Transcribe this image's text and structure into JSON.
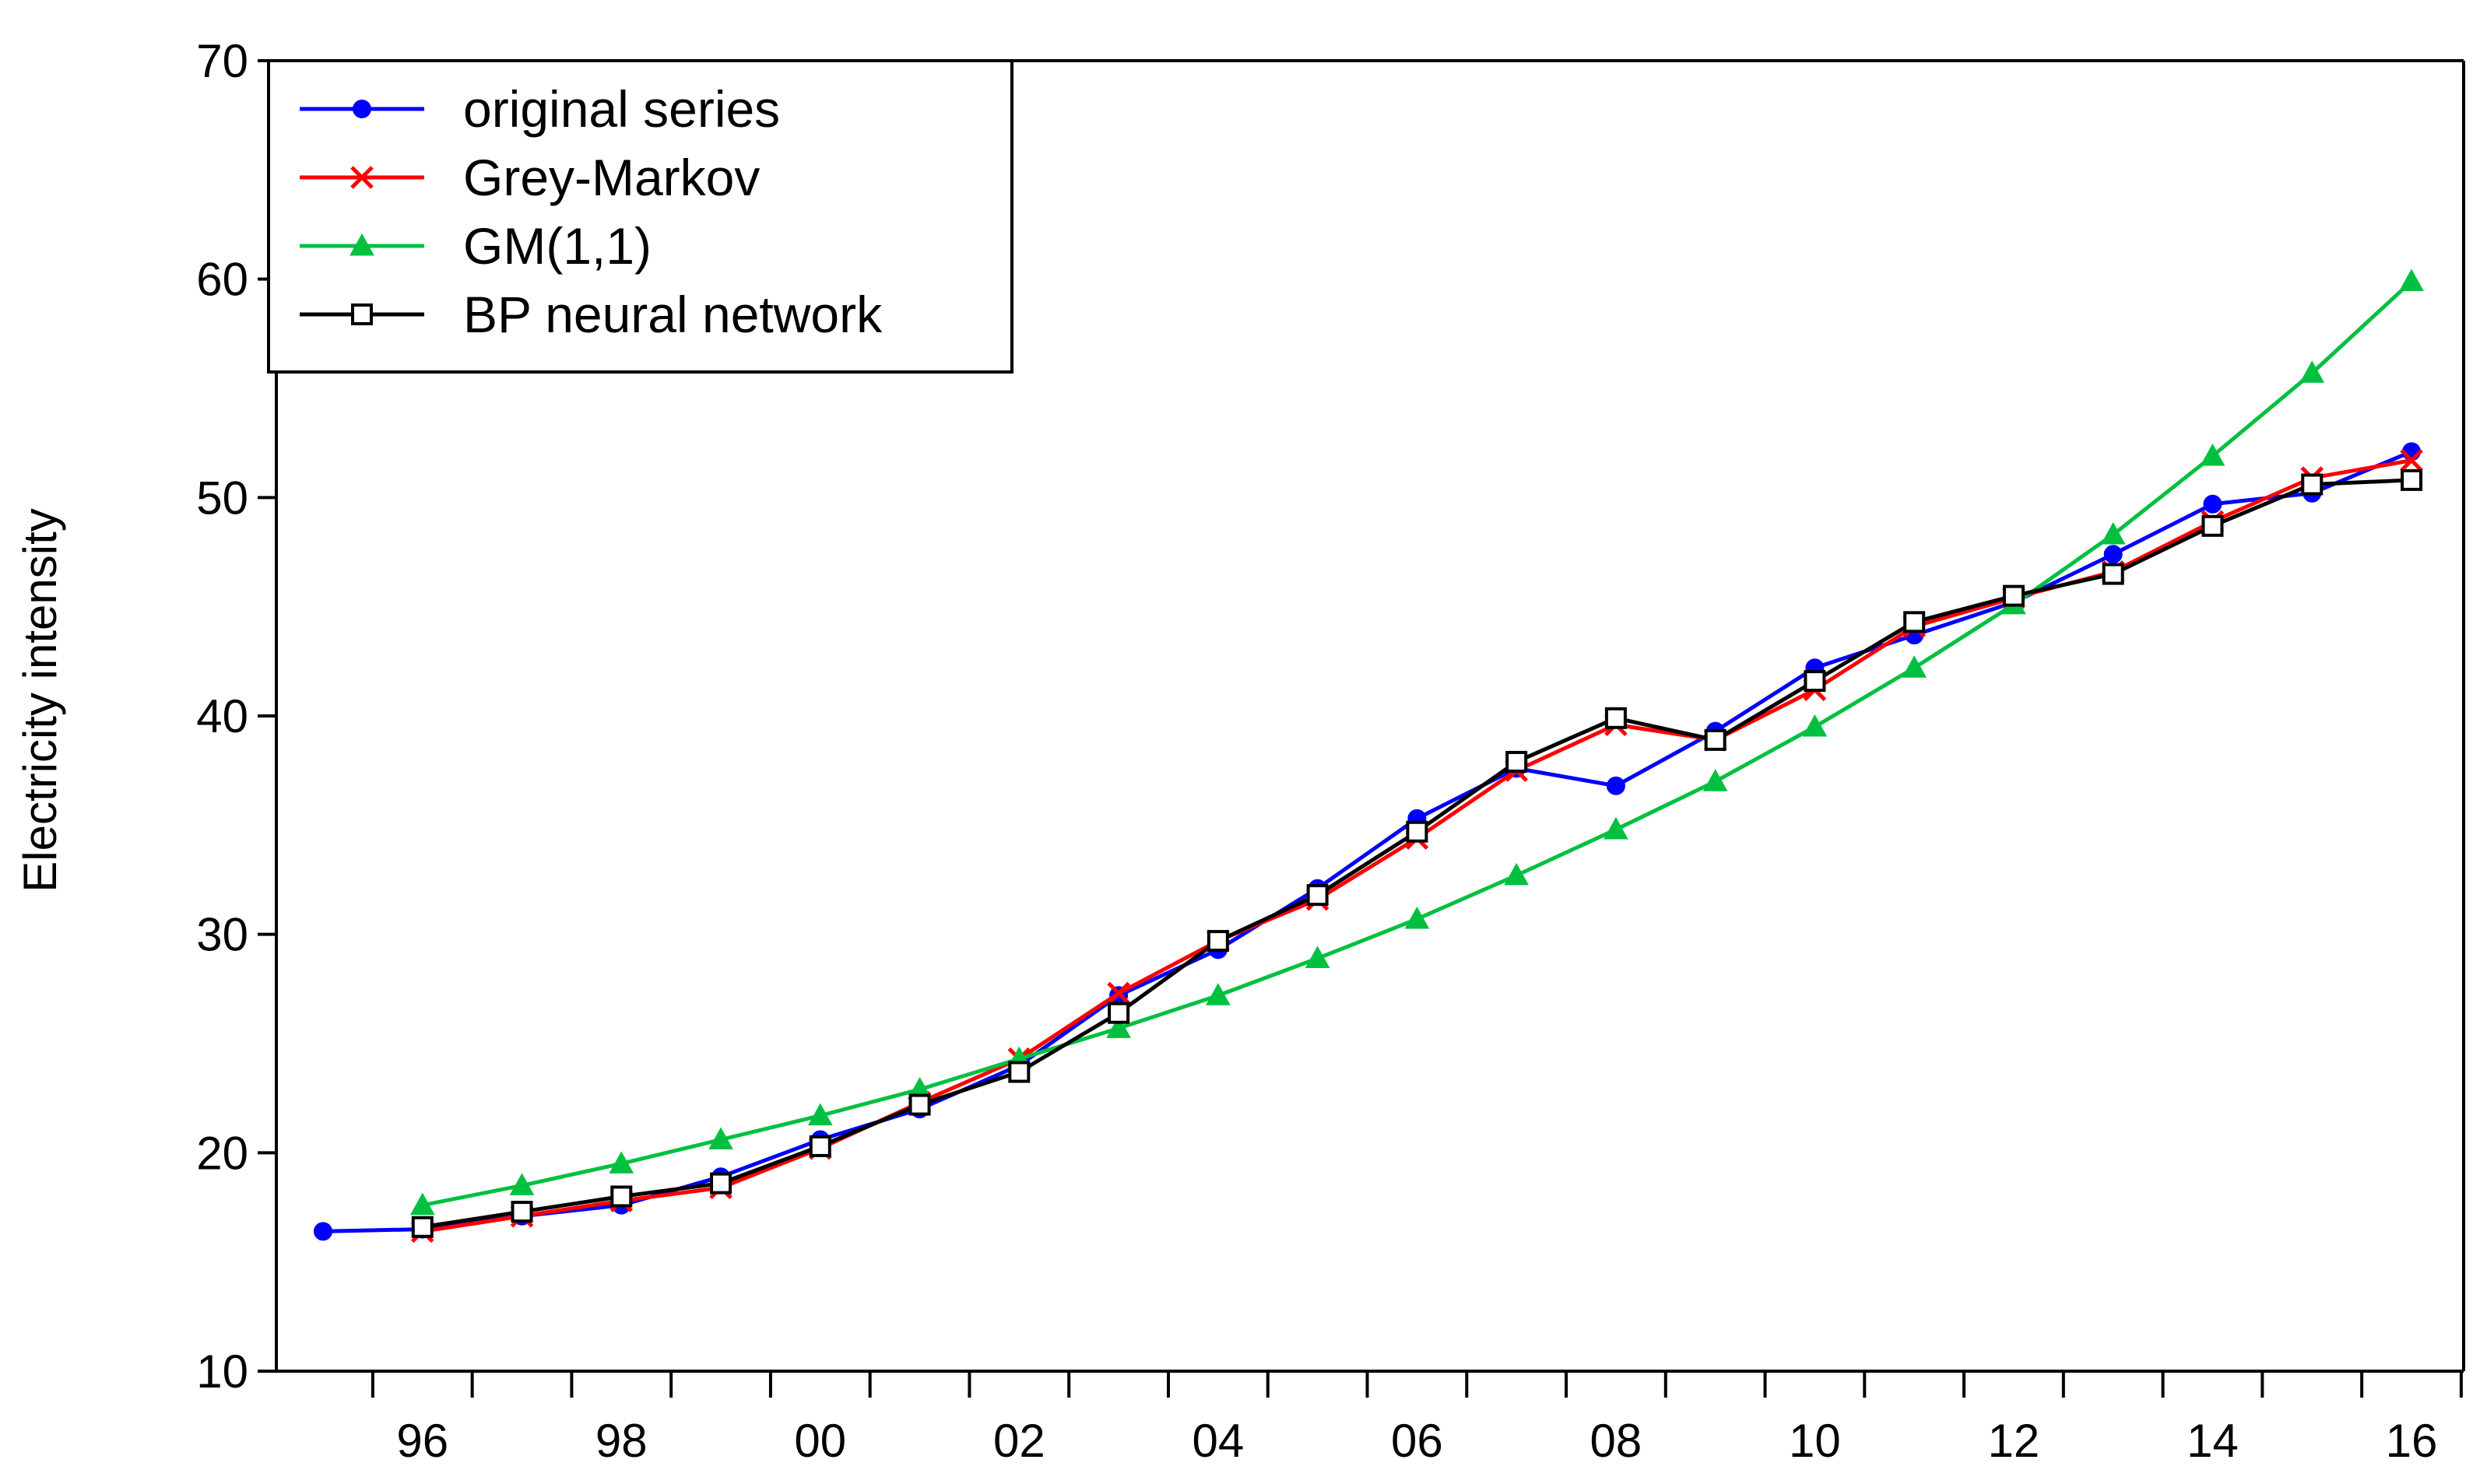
{
  "chart_data": {
    "type": "line",
    "ylabel": "Electricity intensity",
    "xlabel": "",
    "ylim": [
      10,
      70
    ],
    "yticks": [
      10,
      20,
      30,
      40,
      50,
      60,
      70
    ],
    "x_years": [
      1995,
      1996,
      1997,
      1998,
      1999,
      2000,
      2001,
      2002,
      2003,
      2004,
      2005,
      2006,
      2007,
      2008,
      2009,
      2010,
      2011,
      2012,
      2013,
      2014,
      2015,
      2016
    ],
    "x_tick_labels": [
      {
        "year": 1996,
        "label": "96"
      },
      {
        "year": 1998,
        "label": "98"
      },
      {
        "year": 2000,
        "label": "00"
      },
      {
        "year": 2002,
        "label": "02"
      },
      {
        "year": 2004,
        "label": "04"
      },
      {
        "year": 2006,
        "label": "06"
      },
      {
        "year": 2008,
        "label": "08"
      },
      {
        "year": 2010,
        "label": "10"
      },
      {
        "year": 2012,
        "label": "12"
      },
      {
        "year": 2014,
        "label": "14"
      },
      {
        "year": 2016,
        "label": "16"
      }
    ],
    "grid": false,
    "legend_position": "top-left",
    "series": [
      {
        "name": "original  series",
        "color": "#0000ff",
        "marker": "circle",
        "x": [
          1995,
          1996,
          1997,
          1998,
          1999,
          2000,
          2001,
          2002,
          2003,
          2004,
          2005,
          2006,
          2007,
          2008,
          2009,
          2010,
          2011,
          2012,
          2013,
          2014,
          2015,
          2016
        ],
        "values": [
          16.4,
          16.5,
          17.1,
          17.6,
          18.9,
          20.6,
          22.0,
          24.0,
          27.2,
          29.3,
          32.1,
          35.3,
          37.6,
          36.8,
          39.3,
          42.2,
          43.7,
          45.2,
          47.4,
          49.7,
          50.2,
          52.1
        ]
      },
      {
        "name": "Grey-Markov",
        "color": "#ff0000",
        "marker": "x",
        "x": [
          1996,
          1997,
          1998,
          1999,
          2000,
          2001,
          2002,
          2003,
          2004,
          2005,
          2006,
          2007,
          2008,
          2009,
          2010,
          2011,
          2012,
          2013,
          2014,
          2015,
          2016
        ],
        "values": [
          16.4,
          17.1,
          17.8,
          18.4,
          20.2,
          22.3,
          24.3,
          27.3,
          29.7,
          31.6,
          34.4,
          37.5,
          39.6,
          38.9,
          41.2,
          44.1,
          45.4,
          46.6,
          48.9,
          50.9,
          51.7
        ]
      },
      {
        "name": "GM(1,1)",
        "color": "#00c040",
        "marker": "triangle",
        "x": [
          1996,
          1997,
          1998,
          1999,
          2000,
          2001,
          2002,
          2003,
          2004,
          2005,
          2006,
          2007,
          2008,
          2009,
          2010,
          2011,
          2012,
          2013,
          2014,
          2015,
          2016
        ],
        "values": [
          17.6,
          18.5,
          19.5,
          20.6,
          21.7,
          22.9,
          24.3,
          25.7,
          27.2,
          28.9,
          30.7,
          32.7,
          34.8,
          37.0,
          39.5,
          42.2,
          45.1,
          48.3,
          51.9,
          55.7,
          59.9
        ]
      },
      {
        "name": "BP neural network",
        "color": "#000000",
        "marker": "square",
        "x": [
          1996,
          1997,
          1998,
          1999,
          2000,
          2001,
          2002,
          2003,
          2004,
          2005,
          2006,
          2007,
          2008,
          2009,
          2010,
          2011,
          2012,
          2013,
          2014,
          2015,
          2016
        ],
        "values": [
          16.6,
          17.3,
          18.0,
          18.6,
          20.3,
          22.2,
          23.7,
          26.4,
          29.7,
          31.8,
          34.7,
          37.9,
          39.9,
          38.9,
          41.6,
          44.3,
          45.5,
          46.5,
          48.7,
          50.6,
          50.8
        ]
      }
    ]
  }
}
